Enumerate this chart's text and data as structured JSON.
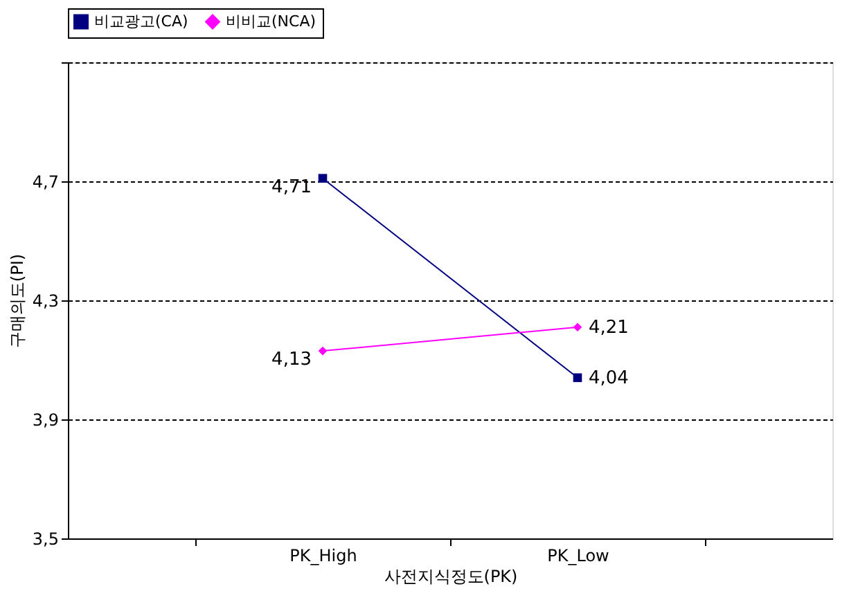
{
  "chart_data": {
    "type": "line",
    "xlabel": "사전지식정도(PK)",
    "ylabel": "구매의도(PI)",
    "categories": [
      "PK_High",
      "PK_Low"
    ],
    "series": [
      {
        "name": "비교광고(CA)",
        "color": "#000080",
        "marker": "square",
        "values": [
          4.71,
          4.04
        ],
        "value_labels": [
          "4,71",
          "4,04"
        ]
      },
      {
        "name": "비비교(NCA)",
        "color": "#ff00ff",
        "marker": "diamond",
        "values": [
          4.13,
          4.21
        ],
        "value_labels": [
          "4,13",
          "4,21"
        ]
      }
    ],
    "ylim": [
      3.5,
      5.1
    ],
    "yticks": [
      {
        "value": 3.5,
        "label": "3,5"
      },
      {
        "value": 3.9,
        "label": "3,9"
      },
      {
        "value": 4.3,
        "label": "4,3"
      },
      {
        "value": 4.7,
        "label": "4,7"
      },
      {
        "value": 5.1,
        "label": null
      }
    ],
    "grid": "y",
    "legend": "top",
    "line_style": "solid"
  }
}
